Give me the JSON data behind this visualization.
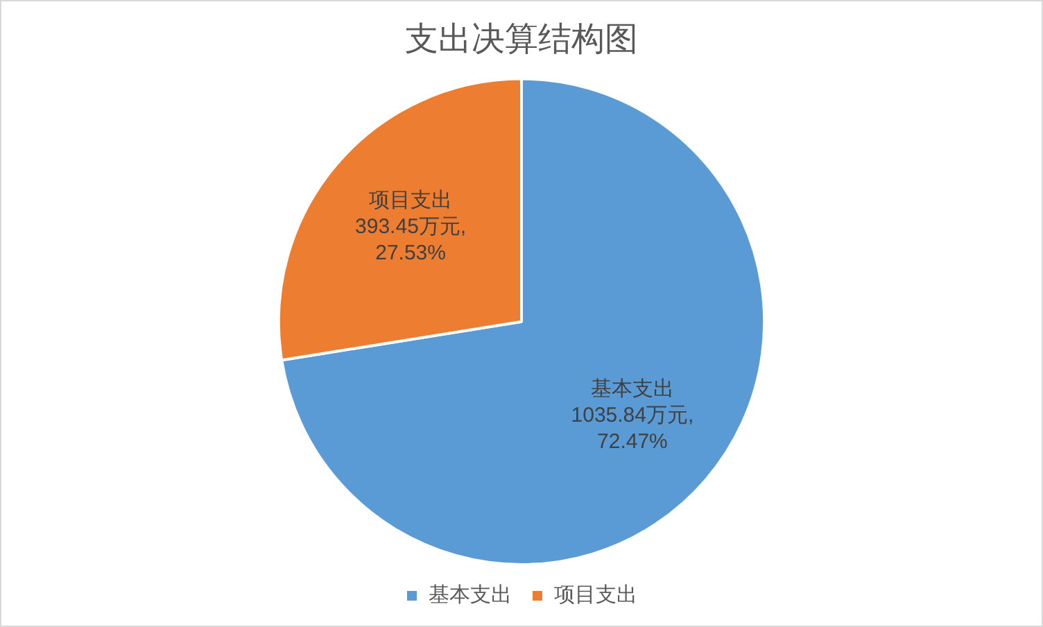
{
  "chart_data": {
    "type": "pie",
    "title": "支出决算结构图",
    "categories": [
      "基本支出",
      "项目支出"
    ],
    "values": [
      72.47,
      27.53
    ],
    "colors": [
      "#5b9bd5",
      "#ed7d31"
    ],
    "value_labels": [
      "1035.84万元,\n72.47%",
      "393.45万元,\n27.53%"
    ],
    "legend": "bottom"
  }
}
